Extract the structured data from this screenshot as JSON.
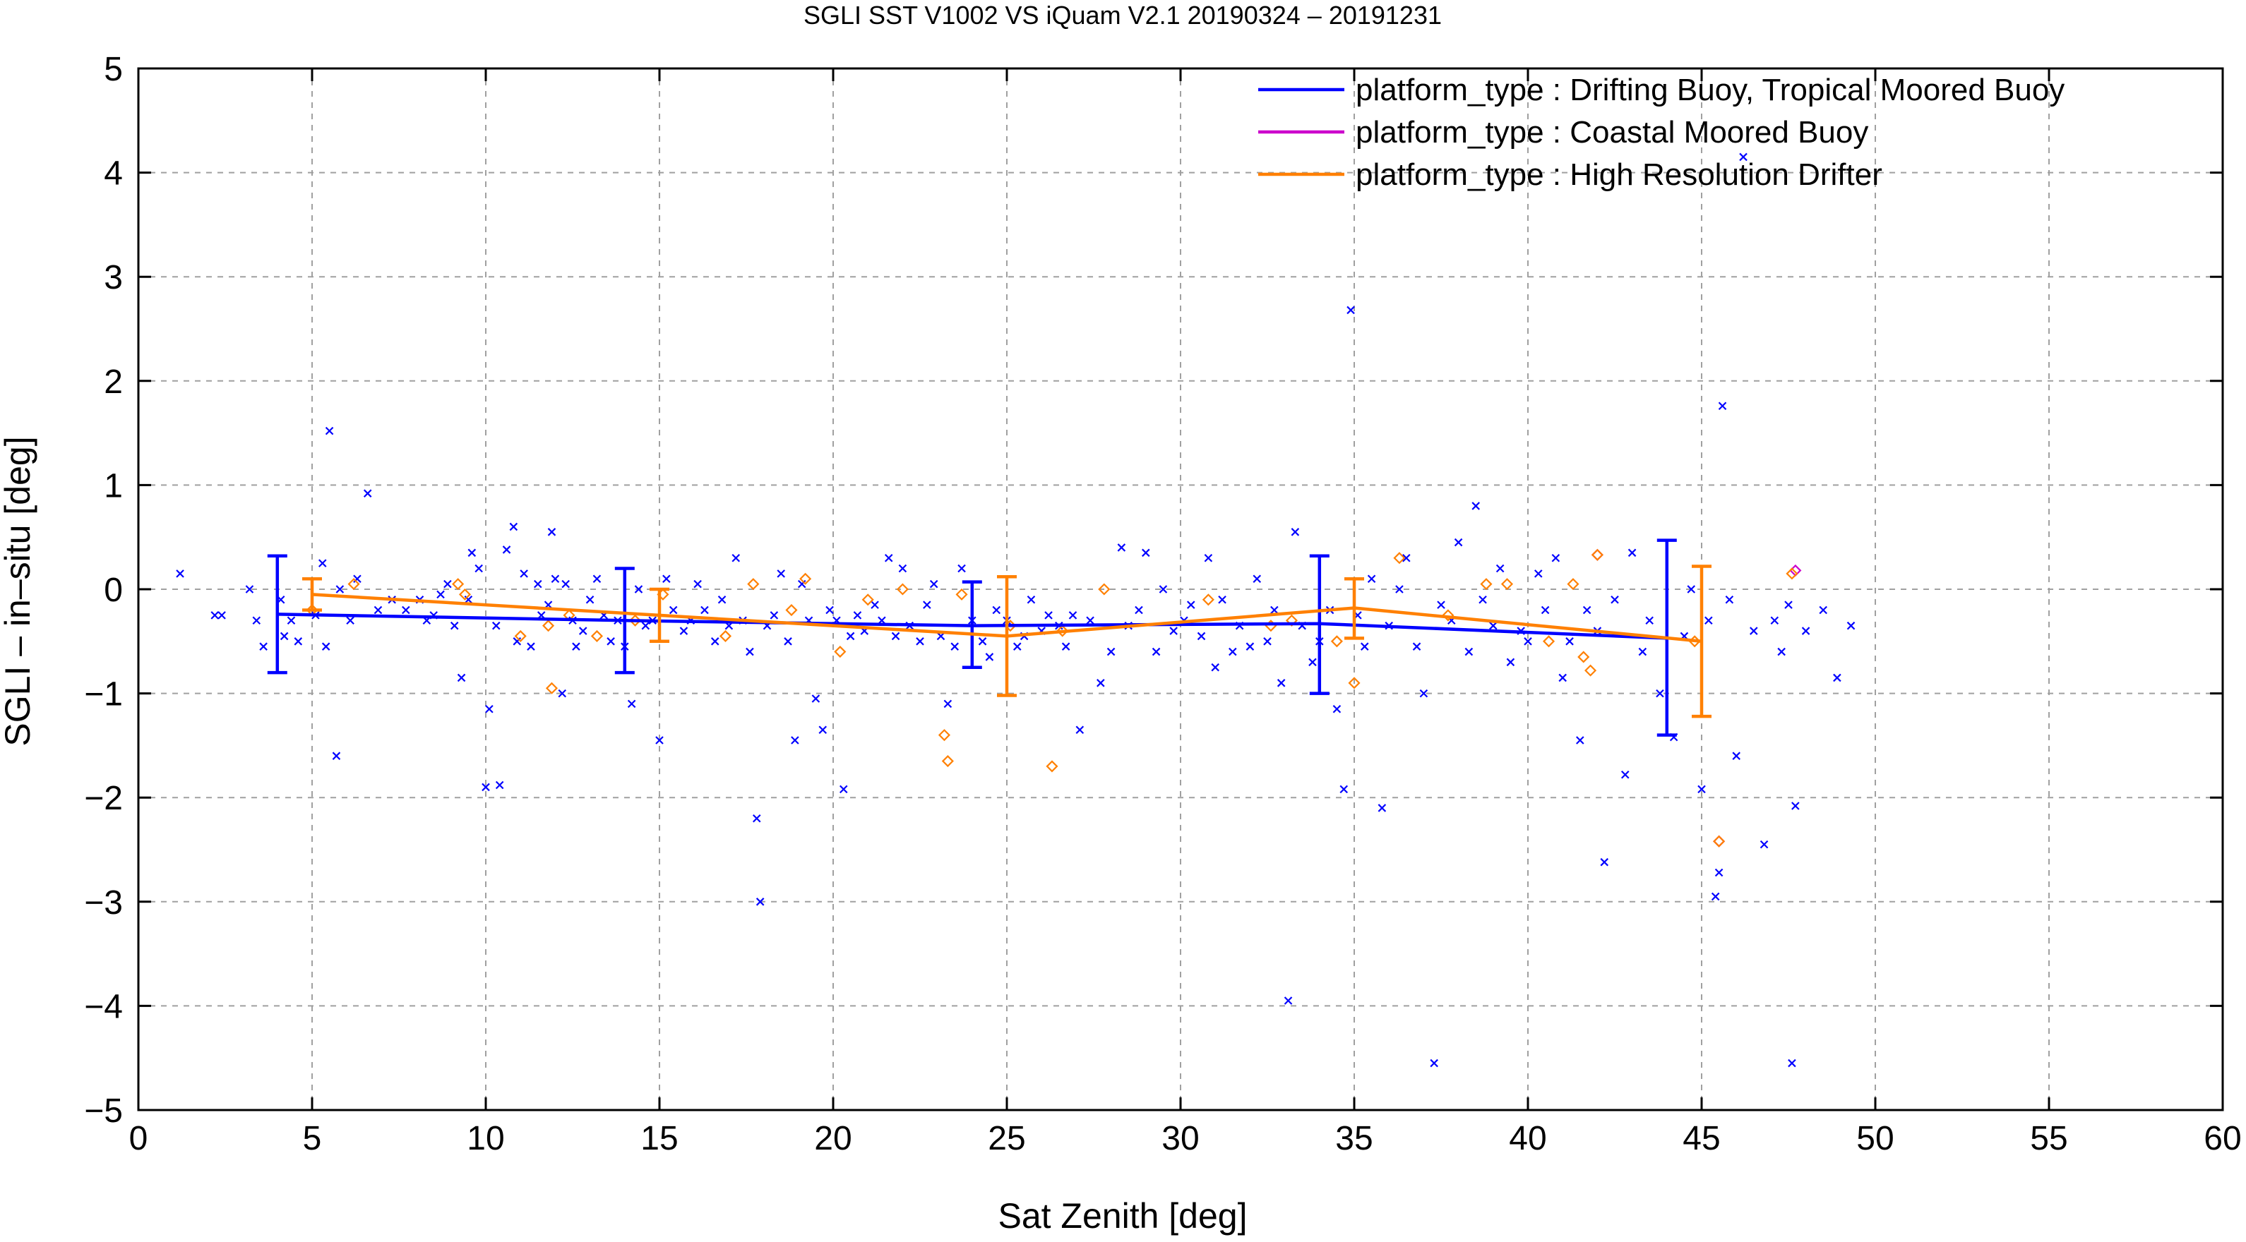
{
  "chart_data": {
    "type": "scatter",
    "title": "SGLI SST V1002 VS iQuam V2.1 20190324 – 20191231",
    "xlabel": "Sat Zenith [deg]",
    "ylabel": "SGLI – in–situ [deg]",
    "xlim": [
      0,
      60
    ],
    "ylim": [
      -5,
      5
    ],
    "xticks": [
      0,
      5,
      10,
      15,
      20,
      25,
      30,
      35,
      40,
      45,
      50,
      55,
      60
    ],
    "yticks": [
      -5,
      -4,
      -3,
      -2,
      -1,
      0,
      1,
      2,
      3,
      4,
      5
    ],
    "xtick_labels": [
      "0",
      "5",
      "10",
      "15",
      "20",
      "25",
      "30",
      "35",
      "40",
      "45",
      "50",
      "55",
      "60"
    ],
    "ytick_labels": [
      "−5",
      "−4",
      "−3",
      "−2",
      "−1",
      "0",
      "1",
      "2",
      "3",
      "4",
      "5"
    ],
    "grid": true,
    "legend_position": "top-right",
    "legend": [
      {
        "label": "platform_type : Drifting Buoy, Tropical Moored Buoy",
        "color": "#0000ff"
      },
      {
        "label": "platform_type : Coastal Moored Buoy",
        "color": "#cc00cc"
      },
      {
        "label": "platform_type : High Resolution Drifter",
        "color": "#ff8000"
      }
    ],
    "series": [
      {
        "name": "platform_type : Drifting Buoy, Tropical Moored Buoy",
        "color": "#0000ff",
        "marker": "x",
        "points": [
          [
            1.2,
            0.15
          ],
          [
            2.2,
            -0.25
          ],
          [
            2.4,
            -0.25
          ],
          [
            3.2,
            0.0
          ],
          [
            3.4,
            -0.3
          ],
          [
            3.6,
            -0.55
          ],
          [
            4.1,
            -0.1
          ],
          [
            4.2,
            -0.45
          ],
          [
            4.4,
            -0.3
          ],
          [
            4.6,
            -0.5
          ],
          [
            5.1,
            -0.25
          ],
          [
            5.3,
            0.25
          ],
          [
            5.4,
            -0.55
          ],
          [
            5.5,
            1.52
          ],
          [
            5.7,
            -1.6
          ],
          [
            5.8,
            0.0
          ],
          [
            6.1,
            -0.3
          ],
          [
            6.3,
            0.1
          ],
          [
            6.6,
            0.92
          ],
          [
            6.9,
            -0.2
          ],
          [
            7.3,
            -0.1
          ],
          [
            7.7,
            -0.2
          ],
          [
            8.1,
            -0.1
          ],
          [
            8.3,
            -0.3
          ],
          [
            8.5,
            -0.25
          ],
          [
            8.7,
            -0.05
          ],
          [
            8.9,
            0.05
          ],
          [
            9.1,
            -0.35
          ],
          [
            9.3,
            -0.85
          ],
          [
            9.5,
            -0.1
          ],
          [
            9.6,
            0.35
          ],
          [
            9.8,
            0.2
          ],
          [
            10.0,
            -1.9
          ],
          [
            10.1,
            -1.15
          ],
          [
            10.3,
            -0.35
          ],
          [
            10.4,
            -1.88
          ],
          [
            10.6,
            0.38
          ],
          [
            10.8,
            0.6
          ],
          [
            10.9,
            -0.5
          ],
          [
            11.1,
            0.15
          ],
          [
            11.3,
            -0.55
          ],
          [
            11.5,
            0.05
          ],
          [
            11.6,
            -0.25
          ],
          [
            11.8,
            -0.15
          ],
          [
            11.9,
            0.55
          ],
          [
            12.0,
            0.1
          ],
          [
            12.2,
            -1.0
          ],
          [
            12.3,
            0.05
          ],
          [
            12.5,
            -0.3
          ],
          [
            12.6,
            -0.55
          ],
          [
            12.8,
            -0.4
          ],
          [
            13.0,
            -0.1
          ],
          [
            13.2,
            0.1
          ],
          [
            13.4,
            -0.25
          ],
          [
            13.6,
            -0.5
          ],
          [
            13.8,
            -0.3
          ],
          [
            14.0,
            -0.55
          ],
          [
            14.2,
            -1.1
          ],
          [
            14.4,
            0.0
          ],
          [
            14.6,
            -0.35
          ],
          [
            14.8,
            -0.3
          ],
          [
            15.0,
            -1.45
          ],
          [
            15.2,
            0.1
          ],
          [
            15.4,
            -0.2
          ],
          [
            15.7,
            -0.4
          ],
          [
            15.9,
            -0.3
          ],
          [
            16.1,
            0.05
          ],
          [
            16.3,
            -0.2
          ],
          [
            16.6,
            -0.5
          ],
          [
            16.8,
            -0.1
          ],
          [
            17.0,
            -0.35
          ],
          [
            17.2,
            0.3
          ],
          [
            17.4,
            -0.3
          ],
          [
            17.6,
            -0.6
          ],
          [
            17.8,
            -2.2
          ],
          [
            17.9,
            -3.0
          ],
          [
            18.1,
            -0.35
          ],
          [
            18.3,
            -0.25
          ],
          [
            18.5,
            0.15
          ],
          [
            18.7,
            -0.5
          ],
          [
            18.9,
            -1.45
          ],
          [
            19.1,
            0.05
          ],
          [
            19.3,
            -0.3
          ],
          [
            19.5,
            -1.05
          ],
          [
            19.7,
            -1.35
          ],
          [
            19.9,
            -0.2
          ],
          [
            20.1,
            -0.3
          ],
          [
            20.3,
            -1.92
          ],
          [
            20.5,
            -0.45
          ],
          [
            20.7,
            -0.25
          ],
          [
            20.9,
            -0.4
          ],
          [
            21.2,
            -0.15
          ],
          [
            21.4,
            -0.3
          ],
          [
            21.6,
            0.3
          ],
          [
            21.8,
            -0.45
          ],
          [
            22.0,
            0.2
          ],
          [
            22.2,
            -0.35
          ],
          [
            22.5,
            -0.5
          ],
          [
            22.7,
            -0.15
          ],
          [
            22.9,
            0.05
          ],
          [
            23.1,
            -0.45
          ],
          [
            23.3,
            -1.1
          ],
          [
            23.5,
            -0.55
          ],
          [
            23.7,
            0.2
          ],
          [
            24.0,
            -0.3
          ],
          [
            24.3,
            -0.5
          ],
          [
            24.5,
            -0.65
          ],
          [
            24.7,
            -0.2
          ],
          [
            25.0,
            -0.3
          ],
          [
            25.3,
            -0.55
          ],
          [
            25.5,
            -0.45
          ],
          [
            25.7,
            -0.1
          ],
          [
            26.0,
            -0.4
          ],
          [
            26.2,
            -0.25
          ],
          [
            26.5,
            -0.35
          ],
          [
            26.7,
            -0.55
          ],
          [
            26.9,
            -0.25
          ],
          [
            27.1,
            -1.35
          ],
          [
            27.4,
            -0.3
          ],
          [
            27.7,
            -0.9
          ],
          [
            28.0,
            -0.6
          ],
          [
            28.3,
            0.4
          ],
          [
            28.5,
            -0.35
          ],
          [
            28.8,
            -0.2
          ],
          [
            29.0,
            0.35
          ],
          [
            29.3,
            -0.6
          ],
          [
            29.5,
            0.0
          ],
          [
            29.8,
            -0.4
          ],
          [
            30.1,
            -0.3
          ],
          [
            30.3,
            -0.15
          ],
          [
            30.6,
            -0.45
          ],
          [
            30.8,
            0.3
          ],
          [
            31.0,
            -0.75
          ],
          [
            31.2,
            -0.1
          ],
          [
            31.5,
            -0.6
          ],
          [
            31.7,
            -0.35
          ],
          [
            32.0,
            -0.55
          ],
          [
            32.2,
            0.1
          ],
          [
            32.5,
            -0.5
          ],
          [
            32.7,
            -0.2
          ],
          [
            32.9,
            -0.9
          ],
          [
            33.1,
            -3.95
          ],
          [
            33.3,
            0.55
          ],
          [
            33.5,
            -0.35
          ],
          [
            33.8,
            -0.7
          ],
          [
            34.0,
            -0.5
          ],
          [
            34.3,
            -0.2
          ],
          [
            34.5,
            -1.15
          ],
          [
            34.7,
            -1.92
          ],
          [
            34.9,
            2.68
          ],
          [
            35.1,
            -0.25
          ],
          [
            35.3,
            -0.55
          ],
          [
            35.5,
            0.1
          ],
          [
            35.8,
            -2.1
          ],
          [
            36.0,
            -0.35
          ],
          [
            36.3,
            0.0
          ],
          [
            36.5,
            0.3
          ],
          [
            36.8,
            -0.55
          ],
          [
            37.0,
            -1.0
          ],
          [
            37.3,
            -4.55
          ],
          [
            37.5,
            -0.15
          ],
          [
            37.8,
            -0.3
          ],
          [
            38.0,
            0.45
          ],
          [
            38.3,
            -0.6
          ],
          [
            38.5,
            0.8
          ],
          [
            38.7,
            -0.1
          ],
          [
            39.0,
            -0.35
          ],
          [
            39.2,
            0.2
          ],
          [
            39.5,
            -0.7
          ],
          [
            39.8,
            -0.4
          ],
          [
            40.0,
            -0.5
          ],
          [
            40.3,
            0.15
          ],
          [
            40.5,
            -0.2
          ],
          [
            40.8,
            0.3
          ],
          [
            41.0,
            -0.85
          ],
          [
            41.2,
            -0.5
          ],
          [
            41.5,
            -1.45
          ],
          [
            41.7,
            -0.2
          ],
          [
            42.0,
            -0.4
          ],
          [
            42.2,
            -2.62
          ],
          [
            42.5,
            -0.1
          ],
          [
            42.8,
            -1.78
          ],
          [
            43.0,
            0.35
          ],
          [
            43.3,
            -0.6
          ],
          [
            43.5,
            -0.3
          ],
          [
            43.8,
            -1.0
          ],
          [
            44.2,
            -1.42
          ],
          [
            44.5,
            -0.45
          ],
          [
            44.7,
            0.0
          ],
          [
            45.0,
            -1.92
          ],
          [
            45.2,
            -0.3
          ],
          [
            45.4,
            -2.95
          ],
          [
            45.5,
            -2.72
          ],
          [
            45.6,
            1.76
          ],
          [
            45.8,
            -0.1
          ],
          [
            46.0,
            -1.6
          ],
          [
            46.2,
            4.15
          ],
          [
            46.5,
            -0.4
          ],
          [
            46.8,
            -2.45
          ],
          [
            47.1,
            -0.3
          ],
          [
            47.3,
            -0.6
          ],
          [
            47.5,
            -0.15
          ],
          [
            47.6,
            -4.55
          ],
          [
            47.7,
            -2.08
          ],
          [
            48.0,
            -0.4
          ],
          [
            48.5,
            -0.2
          ],
          [
            48.9,
            -0.85
          ],
          [
            49.3,
            -0.35
          ]
        ]
      },
      {
        "name": "platform_type : Coastal Moored Buoy",
        "color": "#cc00cc",
        "marker": "diamond",
        "points": [
          [
            42.0,
            0.33
          ],
          [
            45.5,
            -2.42
          ],
          [
            47.7,
            0.18
          ]
        ]
      },
      {
        "name": "platform_type : High Resolution Drifter",
        "color": "#ff8000",
        "marker": "diamond",
        "points": [
          [
            5.0,
            -0.2
          ],
          [
            6.2,
            0.05
          ],
          [
            9.2,
            0.05
          ],
          [
            9.4,
            -0.05
          ],
          [
            11.0,
            -0.45
          ],
          [
            11.8,
            -0.35
          ],
          [
            11.9,
            -0.95
          ],
          [
            12.4,
            -0.25
          ],
          [
            13.2,
            -0.45
          ],
          [
            14.3,
            -0.3
          ],
          [
            15.1,
            -0.05
          ],
          [
            16.9,
            -0.45
          ],
          [
            17.7,
            0.05
          ],
          [
            18.8,
            -0.2
          ],
          [
            19.2,
            0.1
          ],
          [
            20.2,
            -0.6
          ],
          [
            21.0,
            -0.1
          ],
          [
            22.0,
            0.0
          ],
          [
            23.2,
            -1.4
          ],
          [
            23.3,
            -1.65
          ],
          [
            23.7,
            -0.05
          ],
          [
            25.1,
            -0.35
          ],
          [
            26.3,
            -1.7
          ],
          [
            26.6,
            -0.4
          ],
          [
            27.8,
            0.0
          ],
          [
            30.8,
            -0.1
          ],
          [
            32.6,
            -0.35
          ],
          [
            33.2,
            -0.3
          ],
          [
            34.5,
            -0.5
          ],
          [
            35.0,
            -0.9
          ],
          [
            36.3,
            0.3
          ],
          [
            37.7,
            -0.25
          ],
          [
            38.8,
            0.05
          ],
          [
            39.4,
            0.05
          ],
          [
            40.6,
            -0.5
          ],
          [
            41.3,
            0.05
          ],
          [
            41.6,
            -0.65
          ],
          [
            41.8,
            -0.78
          ],
          [
            42.0,
            0.33
          ],
          [
            44.8,
            -0.5
          ],
          [
            45.5,
            -2.42
          ],
          [
            47.6,
            0.15
          ]
        ]
      }
    ],
    "mean_lines": [
      {
        "name": "platform_type : Drifting Buoy, Tropical Moored Buoy",
        "color": "#0000ff",
        "points": [
          [
            4,
            -0.24
          ],
          [
            14,
            -0.3
          ],
          [
            24,
            -0.35
          ],
          [
            34,
            -0.33
          ],
          [
            44,
            -0.47
          ]
        ],
        "errors": [
          [
            -0.8,
            0.32
          ],
          [
            -0.8,
            0.2
          ],
          [
            -0.75,
            0.07
          ],
          [
            -1.0,
            0.32
          ],
          [
            -1.4,
            0.47
          ]
        ]
      },
      {
        "name": "platform_type : Coastal Moored Buoy",
        "color": "#cc00cc",
        "points": [],
        "errors": []
      },
      {
        "name": "platform_type : High Resolution Drifter",
        "color": "#ff8000",
        "points": [
          [
            5,
            -0.05
          ],
          [
            15,
            -0.25
          ],
          [
            25,
            -0.45
          ],
          [
            35,
            -0.18
          ],
          [
            45,
            -0.5
          ]
        ],
        "errors": [
          [
            -0.2,
            0.1
          ],
          [
            -0.5,
            0.0
          ],
          [
            -1.02,
            0.12
          ],
          [
            -0.47,
            0.1
          ],
          [
            -1.22,
            0.22
          ]
        ]
      }
    ]
  }
}
